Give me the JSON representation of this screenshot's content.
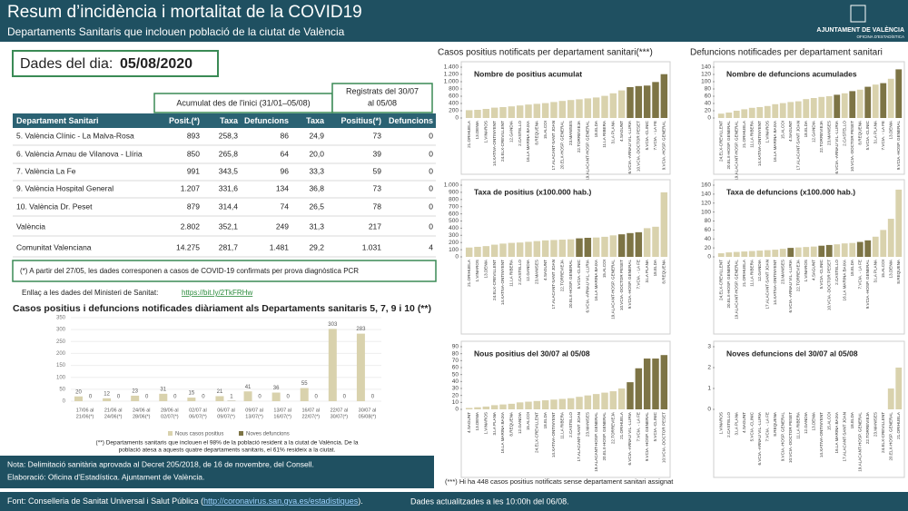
{
  "header": {
    "title": "Resum d’incidència i mortalitat de la COVID19",
    "subtitle": "Departaments Sanitaris que inclouen població de la ciutat de València",
    "org": "AJUNTAMENT DE VALÈNCIA",
    "org_sub": "OFICINA D'ESTADÍSTICA"
  },
  "date_label": "Dades del dia:",
  "date": "05/08/2020",
  "table": {
    "group1": "Acumulat des de l'inici (31/01–05/08)",
    "group2": [
      "Registrats del 30/07",
      "al 05/08"
    ],
    "columns": [
      "Departament Sanitari",
      "Posit.(*)",
      "Taxa",
      "Defuncions",
      "Taxa",
      "Positius(*)",
      "Defuncions"
    ],
    "rows": [
      [
        "5. València Clínic - La Malva-Rosa",
        "893",
        "258,3",
        "86",
        "24,9",
        "73",
        "0"
      ],
      [
        "6. València Arnau de Vilanova - Llíria",
        "850",
        "265,8",
        "64",
        "20,0",
        "39",
        "0"
      ],
      [
        "7. València La Fe",
        "991",
        "343,5",
        "96",
        "33,3",
        "59",
        "0"
      ],
      [
        "9. València Hospital General",
        "1.207",
        "331,6",
        "134",
        "36,8",
        "73",
        "0"
      ],
      [
        "10. València Dr. Peset",
        "879",
        "314,4",
        "74",
        "26,5",
        "78",
        "0"
      ],
      [
        "València",
        "2.802",
        "352,1",
        "249",
        "31,3",
        "217",
        "0"
      ],
      [
        "Comunitat Valenciana",
        "14.275",
        "281,7",
        "1.481",
        "29,2",
        "1.031",
        "4"
      ]
    ],
    "note": "(*) A partir del 27/05, les dades corresponen a casos de COVID-19 confirmats per prova diagnòstica PCR"
  },
  "link_label": "Enllaç a les dades del Ministeri de Sanitat:",
  "link": "https://bit.ly/2TkFRHw",
  "right_title_cases": "Casos positius notificats per departament sanitari(***)",
  "right_title_deaths": "Defuncions notificades per departament sanitari",
  "right_note": "(***) Hi ha 448 casos positius notificats sense departament sanitari assignat",
  "footer": {
    "note": "Nota: Delimitació sanitària aprovada al Decret 205/2018, de 16 de novembre, del Consell.",
    "credit": "Elaboració: Oficina d'Estadística. Ajuntament de València.",
    "source_prefix": "Font: Conselleria de Sanitat Universal i Salut Pública (",
    "source_link": "http://coronavirus.san.gva.es/estadistiques",
    "source_suffix": ").",
    "updated": "Dades actualitzades a les 10:00h del 06/08."
  },
  "chart_data": [
    {
      "type": "bar",
      "title": "Casos positius i defuncions notificades diàriament als Departaments sanitaris 5, 7, 9 i 10 (**)",
      "categories": [
        [
          "17/06 al",
          "21/06(*)"
        ],
        [
          "21/06 al",
          "24/06(*)"
        ],
        [
          "24/06 al",
          "28/06(*)"
        ],
        [
          "28/06 al",
          "02/07(*)"
        ],
        [
          "02/07 al",
          "06/07(*)"
        ],
        [
          "06/07 al",
          "09/07(*)"
        ],
        [
          "09/07 al",
          "13/07(*)"
        ],
        [
          "13/07 al",
          "16/07(*)"
        ],
        [
          "16/07 al",
          "22/07(*)"
        ],
        [
          "22/07 al",
          "30/07(*)"
        ],
        [
          "30/07 al",
          "05/08(*)"
        ]
      ],
      "series": [
        {
          "name": "Nous casos positius",
          "color": "#d9d2ad",
          "values": [
            20,
            12,
            23,
            31,
            15,
            21,
            41,
            36,
            55,
            303,
            283
          ]
        },
        {
          "name": "Noves defuncions",
          "color": "#7d7445",
          "values": [
            0,
            0,
            0,
            0,
            0,
            1,
            0,
            0,
            0,
            0,
            0
          ]
        }
      ],
      "ylim": [
        0,
        350
      ],
      "yticks": [
        0,
        50,
        100,
        150,
        200,
        250,
        300,
        350
      ],
      "grid": true,
      "note": [
        "(**) Departaments sanitaris que inclouen el 98% de la població resident a la ciutat de València. De la",
        "població atesa a aquests quatre departaments sanitaris, el 61% resideix a la ciutat."
      ]
    },
    {
      "type": "bar",
      "title": "Nombre de positius acumulat",
      "categories": [
        "21.ORIHUELA",
        "13.DENIA",
        "1.VINAROS",
        "14.XATIVA-ONTINYENT",
        "24.ELX-CREVILLENT",
        "12.GANDIA",
        "2.CASTELLO",
        "16.LA MARINA BAIXA",
        "8.REQUENA",
        "15.ALCOI",
        "17.ALACANT-SANT JOAN",
        "20.ELX-HOSP. GENERAL",
        "23.MANISES",
        "22.TORREVIEJA",
        "19.ALACANT-HOSP. GENERAL",
        "18.ELDA",
        "11.LA RIBERA",
        "3.LA PLANA",
        "4.SAGUNT",
        "6.VCIA.-ARNAU VIL.-LLIRIA",
        "10.VCIA.-DOCTOR PESET",
        "5.VCIA.-CLINIC",
        "7.VCIA. - LA FE",
        "9.VCIA.-HOSP. GENERAL"
      ],
      "values": [
        215,
        225,
        250,
        285,
        300,
        320,
        345,
        370,
        390,
        410,
        440,
        470,
        495,
        515,
        540,
        565,
        610,
        680,
        760,
        850,
        879,
        893,
        991,
        1207
      ],
      "colors": [
        "#d9d2ad",
        "#d9d2ad",
        "#d9d2ad",
        "#d9d2ad",
        "#d9d2ad",
        "#d9d2ad",
        "#d9d2ad",
        "#d9d2ad",
        "#d9d2ad",
        "#d9d2ad",
        "#d9d2ad",
        "#d9d2ad",
        "#d9d2ad",
        "#d9d2ad",
        "#d9d2ad",
        "#d9d2ad",
        "#d9d2ad",
        "#d9d2ad",
        "#d9d2ad",
        "#7d7445",
        "#7d7445",
        "#7d7445",
        "#7d7445",
        "#7d7445"
      ],
      "ylim": [
        0,
        1400
      ],
      "yticks": [
        0,
        200,
        400,
        600,
        800,
        {
          "value": 1000,
          "label": "1.000"
        },
        {
          "value": 1200,
          "label": "1.200"
        },
        {
          "value": 1400,
          "label": "1.400"
        }
      ]
    },
    {
      "type": "bar",
      "title": "Nombre de defuncions acumulades",
      "categories": [
        "24.ELX-CREVILLENT",
        "20.ELX-HOSP. GENERAL",
        "19.ALACANT-HOSP. GENERAL",
        "21.ORIHUELA",
        "11.LA RIBERA",
        "14.XATIVA-ONTINYENT",
        "1.VINAROS",
        "16.LA MARINA BAIXA",
        "15.ALCOI",
        "4.SAGUNT",
        "17.ALACANT-SANT JOAN",
        "18.ELDA",
        "12.GANDIA",
        "22.TORREVIEJA",
        "23.MANISES",
        "6.VCIA.-ARNAU VIL.-LLIRIA",
        "2.CASTELLO",
        "10.VCIA.-DOCTOR PESET",
        "8.REQUENA",
        "5.VCIA.-CLINIC",
        "3.LA PLANA",
        "7.VCIA. - LA FE",
        "13.DENIA",
        "9.VCIA.-HOSP. GENERAL"
      ],
      "values": [
        12,
        15,
        20,
        24,
        28,
        30,
        33,
        38,
        41,
        44,
        46,
        52,
        55,
        58,
        60,
        64,
        68,
        74,
        78,
        86,
        92,
        96,
        108,
        134
      ],
      "colors": [
        "#d9d2ad",
        "#d9d2ad",
        "#d9d2ad",
        "#d9d2ad",
        "#d9d2ad",
        "#d9d2ad",
        "#d9d2ad",
        "#d9d2ad",
        "#d9d2ad",
        "#d9d2ad",
        "#d9d2ad",
        "#d9d2ad",
        "#d9d2ad",
        "#d9d2ad",
        "#d9d2ad",
        "#7d7445",
        "#d9d2ad",
        "#7d7445",
        "#d9d2ad",
        "#7d7445",
        "#d9d2ad",
        "#7d7445",
        "#d9d2ad",
        "#7d7445"
      ],
      "ylim": [
        0,
        140
      ],
      "yticks": [
        0,
        20,
        40,
        60,
        80,
        100,
        120,
        140
      ]
    },
    {
      "type": "bar",
      "title": "Taxa de positius (x100.000 hab.)",
      "categories": [
        "21.ORIHUELA",
        "1.VINAROS",
        "13.DENIA",
        "24.ELX-CREVILLENT",
        "14.XATIVA-ONTINYENT",
        "11.LA RIBERA",
        "2.CASTELLO",
        "12.GANDIA",
        "23.MANISES",
        "4.SAGUNT",
        "17.ALACANT-SANT JOAN",
        "22.TORREVIEJA",
        "20.ELX-HOSP. GENERAL",
        "5.VCIA.-CLINIC",
        "6.VCIA.-ARNAU VIL.-LLIRIA",
        "16.LA MARINA BAIXA",
        "15.ALCOI",
        "19.ALACANT-HOSP. GENERAL",
        "10.VCIA.-DOCTOR PESET",
        "9.VCIA.-HOSP. GENERAL",
        "7.VCIA. - LA FE",
        "3.LA PLANA",
        "18.ELDA",
        "8.REQUENA"
      ],
      "values": [
        130,
        140,
        150,
        170,
        185,
        195,
        200,
        210,
        220,
        230,
        235,
        240,
        245,
        258.3,
        265.8,
        270,
        280,
        300,
        314.4,
        331.6,
        343.5,
        400,
        420,
        900
      ],
      "colors": [
        "#d9d2ad",
        "#d9d2ad",
        "#d9d2ad",
        "#d9d2ad",
        "#d9d2ad",
        "#d9d2ad",
        "#d9d2ad",
        "#d9d2ad",
        "#d9d2ad",
        "#d9d2ad",
        "#d9d2ad",
        "#d9d2ad",
        "#d9d2ad",
        "#7d7445",
        "#7d7445",
        "#d9d2ad",
        "#d9d2ad",
        "#d9d2ad",
        "#7d7445",
        "#7d7445",
        "#7d7445",
        "#d9d2ad",
        "#d9d2ad",
        "#d9d2ad"
      ],
      "ylim": [
        0,
        1000
      ],
      "yticks": [
        0,
        100,
        200,
        300,
        400,
        500,
        600,
        700,
        800,
        900,
        {
          "value": 1000,
          "label": "1.000"
        }
      ]
    },
    {
      "type": "bar",
      "title": "Taxa de defuncions (x100.000 hab.)",
      "categories": [
        "24.ELX-CREVILLENT",
        "20.ELX-HOSP. GENERAL",
        "19.ALACANT-HOSP. GENERAL",
        "21.ORIHUELA",
        "11.LA RIBERA",
        "12.GANDIA",
        "17.ALACANT-SANT JOAN",
        "14.XATIVA-ONTINYENT",
        "23.MANISES",
        "6.VCIA.-ARNAU VIL.-LLIRIA",
        "22.TORREVIEJA",
        "1.VINAROS",
        "4.SAGUNT",
        "5.VCIA.-CLINIC",
        "10.VCIA.-DOCTOR PESET",
        "2.CASTELLO",
        "16.LA MARINA BAIXA",
        "18.ELDA",
        "7.VCIA. - LA FE",
        "9.VCIA.-HOSP. GENERAL",
        "3.LA PLANA",
        "15.ALCOI",
        "13.DENIA",
        "8.REQUENA"
      ],
      "values": [
        8,
        10,
        11,
        12,
        13,
        14,
        15,
        16,
        18,
        20,
        21,
        22,
        23,
        24.9,
        26.5,
        28,
        30,
        31,
        33.3,
        36.8,
        45,
        60,
        85,
        150
      ],
      "colors": [
        "#d9d2ad",
        "#d9d2ad",
        "#d9d2ad",
        "#d9d2ad",
        "#d9d2ad",
        "#d9d2ad",
        "#d9d2ad",
        "#d9d2ad",
        "#d9d2ad",
        "#7d7445",
        "#d9d2ad",
        "#d9d2ad",
        "#d9d2ad",
        "#7d7445",
        "#7d7445",
        "#d9d2ad",
        "#d9d2ad",
        "#d9d2ad",
        "#7d7445",
        "#7d7445",
        "#d9d2ad",
        "#d9d2ad",
        "#d9d2ad",
        "#d9d2ad"
      ],
      "ylim": [
        0,
        160
      ],
      "yticks": [
        0,
        20,
        40,
        60,
        80,
        100,
        120,
        140,
        160
      ]
    },
    {
      "type": "bar",
      "title": "Nous positius  del 30/07 al 05/08",
      "categories": [
        "4.SAGUNT",
        "13.DENIA",
        "1.VINAROS",
        "3.LA PLANA",
        "16.LA MARINA BAIXA",
        "8.REQUENA",
        "12.GANDIA",
        "15.ALCOI",
        "24.ELX-CREVILLENT",
        "18.ELDA",
        "14.XATIVA-ONTINYENT",
        "11.LA RIBERA",
        "2.CASTELLO",
        "17.ALACANT-SANT JOAN",
        "23.MANISES",
        "19.ALACANT-HOSP. GENERAL",
        "20.ELX-HOSP. GENERAL",
        "22.TORREVIEJA",
        "21.ORIHUELA",
        "6.VCIA.-ARNAU VIL.-LLIRIA",
        "7.VCIA. - LA FE",
        "9.VCIA.-HOSP. GENERAL",
        "5.VCIA.-CLINIC",
        "10.VCIA.-DOCTOR PESET"
      ],
      "values": [
        2,
        3,
        4,
        6,
        7,
        8,
        10,
        11,
        12,
        13,
        14,
        15,
        16,
        18,
        20,
        22,
        24,
        26,
        30,
        39,
        59,
        73,
        73,
        78
      ],
      "colors": [
        "#d9d2ad",
        "#d9d2ad",
        "#d9d2ad",
        "#d9d2ad",
        "#d9d2ad",
        "#d9d2ad",
        "#d9d2ad",
        "#d9d2ad",
        "#d9d2ad",
        "#d9d2ad",
        "#d9d2ad",
        "#d9d2ad",
        "#d9d2ad",
        "#d9d2ad",
        "#d9d2ad",
        "#d9d2ad",
        "#d9d2ad",
        "#d9d2ad",
        "#d9d2ad",
        "#7d7445",
        "#7d7445",
        "#7d7445",
        "#7d7445",
        "#7d7445"
      ],
      "ylim": [
        0,
        90
      ],
      "yticks": [
        0,
        10,
        20,
        30,
        40,
        50,
        60,
        70,
        80,
        90
      ]
    },
    {
      "type": "bar",
      "title": "Noves defuncions  del 30/07 al 05/08",
      "categories": [
        "1.VINAROS",
        "2.CASTELLO",
        "3.LA PLANA",
        "4.SAGUNT",
        "5.VCIA.-CLINIC",
        "6.VCIA.-ARNAU VIL.-LLIRIA",
        "7.VCIA. - LA FE",
        "8.REQUENA",
        "9.VCIA.-HOSP. GENERAL",
        "10.VCIA.-DOCTOR PESET",
        "11.LA RIBERA",
        "12.GANDIA",
        "13.DENIA",
        "14.XATIVA-ONTINYENT",
        "15.ALCOI",
        "16.LA MARINA BAIXA",
        "17.ALACANT-SANT JOAN",
        "18.ELDA",
        "19.ALACANT-HOSP. GENERAL",
        "22.TORREVIEJA",
        "23.MANISES",
        "24.ELX-CREVILLENT",
        "20.ELX-HOSP. GENERAL",
        "21.ORIHUELA"
      ],
      "values": [
        0,
        0,
        0,
        0,
        0,
        0,
        0,
        0,
        0,
        0,
        0,
        0,
        0,
        0,
        0,
        0,
        0,
        0,
        0,
        0,
        0,
        0,
        1,
        2
      ],
      "colors": [
        "#d9d2ad",
        "#d9d2ad",
        "#d9d2ad",
        "#d9d2ad",
        "#7d7445",
        "#7d7445",
        "#7d7445",
        "#d9d2ad",
        "#7d7445",
        "#7d7445",
        "#d9d2ad",
        "#d9d2ad",
        "#d9d2ad",
        "#d9d2ad",
        "#d9d2ad",
        "#d9d2ad",
        "#d9d2ad",
        "#d9d2ad",
        "#d9d2ad",
        "#d9d2ad",
        "#d9d2ad",
        "#d9d2ad",
        "#d9d2ad",
        "#d9d2ad"
      ],
      "ylim": [
        0,
        3
      ],
      "yticks": [
        0,
        1,
        2,
        3
      ]
    }
  ]
}
